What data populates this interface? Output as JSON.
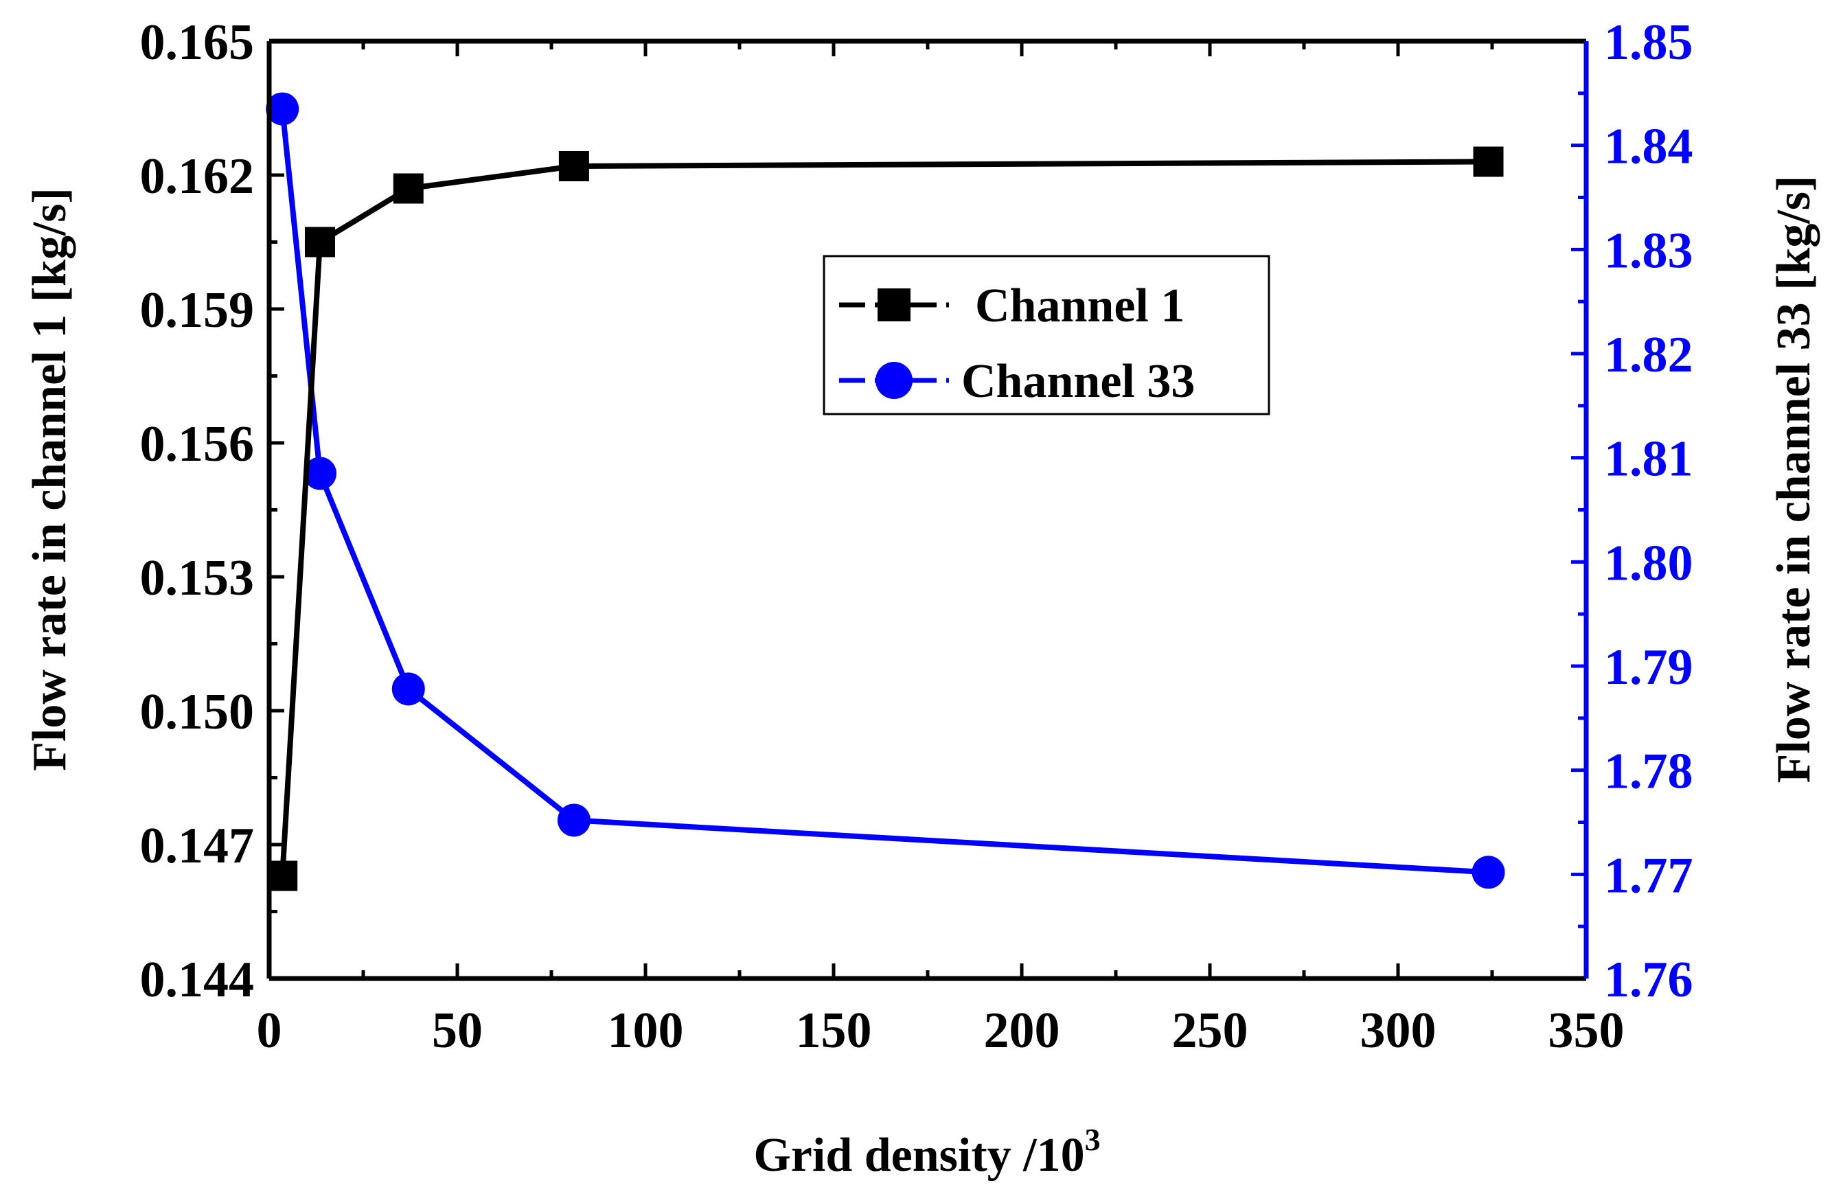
{
  "chart_data": {
    "type": "line",
    "title": "",
    "xlabel": "Grid density /10",
    "xlabel_superscript": "3",
    "ylabel_left": "Flow rate in channel 1 [kg/s]",
    "ylabel_right": "Flow rate in channel 33 [kg/s]",
    "xlim": [
      0,
      350
    ],
    "ylim_left": [
      0.144,
      0.165
    ],
    "ylim_right": [
      1.76,
      1.85
    ],
    "x_ticks": [
      0,
      50,
      100,
      150,
      200,
      250,
      300,
      350
    ],
    "y_ticks_left": [
      "0.144",
      "0.147",
      "0.150",
      "0.153",
      "0.156",
      "0.159",
      "0.162",
      "0.165"
    ],
    "y_ticks_right": [
      "1.76",
      "1.77",
      "1.78",
      "1.79",
      "1.80",
      "1.81",
      "1.82",
      "1.83",
      "1.84",
      "1.85"
    ],
    "legend_position": "upper-middle-right",
    "grid": false,
    "series": [
      {
        "name": "Channel 1",
        "axis": "left",
        "color": "#000000",
        "marker": "square",
        "x": [
          3.5,
          13.5,
          37,
          81,
          324
        ],
        "values": [
          0.1463,
          0.1605,
          0.1617,
          0.1622,
          0.1623
        ]
      },
      {
        "name": "Channel 33",
        "axis": "right",
        "color": "#0000ff",
        "marker": "circle",
        "x": [
          3.5,
          13.5,
          37,
          81,
          324
        ],
        "values": [
          1.8435,
          1.8085,
          1.7878,
          1.7752,
          1.7702
        ]
      }
    ]
  }
}
